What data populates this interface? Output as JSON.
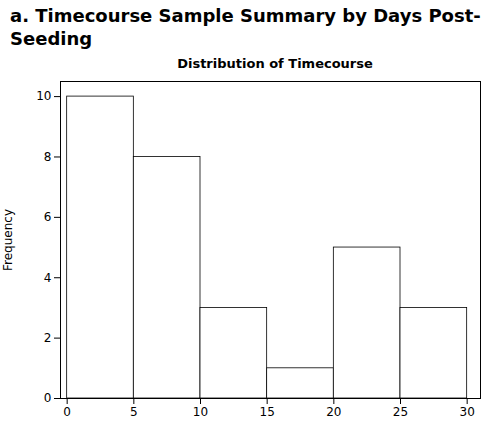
{
  "chart_data": {
    "type": "histogram",
    "suptitle": [
      "a. Timecourse Sample Summary by Days Post-",
      "Seeding"
    ],
    "title": "Distribution of Timecourse",
    "ylabel": "Frequency",
    "bins": [
      0,
      5,
      10,
      15,
      20,
      25,
      30
    ],
    "values": [
      10,
      8,
      3,
      1,
      5,
      3
    ],
    "color": "white",
    "xlim": [
      -0.5,
      31
    ],
    "xticks": [
      0,
      5,
      10,
      15,
      20,
      25,
      30
    ],
    "ylim": [
      0,
      10.5
    ],
    "yticks": [
      0,
      2,
      4,
      6,
      8,
      10
    ],
    "grid": false
  }
}
